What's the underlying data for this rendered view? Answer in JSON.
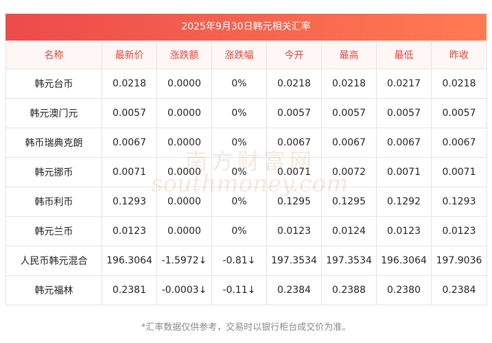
{
  "title": "2025年9月30日韩元相关汇率",
  "headers": [
    "名称",
    "最新价",
    "涨跌额",
    "涨跌幅",
    "今开",
    "最高",
    "最低",
    "昨收"
  ],
  "rows": [
    {
      "name": "韩元台币",
      "last": "0.0218",
      "chg": "0.0000",
      "pct": "0%",
      "open": "0.0218",
      "high": "0.0218",
      "low": "0.0217",
      "prev": "0.0218"
    },
    {
      "name": "韩元澳门元",
      "last": "0.0057",
      "chg": "0.0000",
      "pct": "0%",
      "open": "0.0057",
      "high": "0.0057",
      "low": "0.0057",
      "prev": "0.0057"
    },
    {
      "name": "韩币瑞典克朗",
      "last": "0.0067",
      "chg": "0.0000",
      "pct": "0%",
      "open": "0.0067",
      "high": "0.0067",
      "low": "0.0067",
      "prev": "0.0067"
    },
    {
      "name": "韩元挪币",
      "last": "0.0071",
      "chg": "0.0000",
      "pct": "0%",
      "open": "0.0071",
      "high": "0.0072",
      "low": "0.0071",
      "prev": "0.0071"
    },
    {
      "name": "韩币利币",
      "last": "0.1293",
      "chg": "0.0000",
      "pct": "0%",
      "open": "0.1295",
      "high": "0.1295",
      "low": "0.1292",
      "prev": "0.1293"
    },
    {
      "name": "韩元兰币",
      "last": "0.0123",
      "chg": "0.0000",
      "pct": "0%",
      "open": "0.0123",
      "high": "0.0124",
      "low": "0.0123",
      "prev": "0.0123"
    },
    {
      "name": "人民币韩元混合",
      "last": "196.3064",
      "chg": "-1.5972↓",
      "pct": "-0.81↓",
      "open": "197.3534",
      "high": "197.3534",
      "low": "196.3064",
      "prev": "197.9036"
    },
    {
      "name": "韩元福林",
      "last": "0.2381",
      "chg": "-0.0003↓",
      "pct": "-0.11↓",
      "open": "0.2384",
      "high": "0.2388",
      "low": "0.2380",
      "prev": "0.2384"
    }
  ],
  "colors": {
    "header_text": "#e0463b",
    "down": "#1a9a2f",
    "title_bg_start": "#ec4b4b",
    "title_bg_end": "#ff7b52"
  },
  "watermark": {
    "cn": "南方财富网",
    "en": "southmoney.com"
  },
  "footnote": "*汇率数据仅供参考，交易时以银行柜台成交价为准。"
}
